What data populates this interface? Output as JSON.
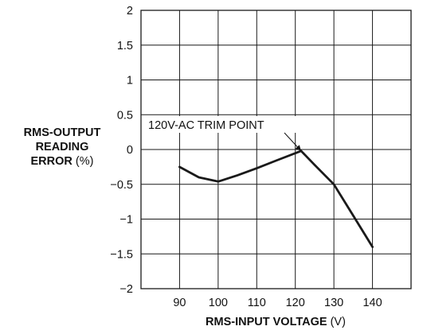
{
  "chart_data": {
    "type": "line",
    "ylabel_lines": [
      "RMS-OUTPUT",
      "READING",
      "ERROR"
    ],
    "ylabel_unit": "(%)",
    "xlabel": "RMS-INPUT VOLTAGE",
    "xlabel_unit": "(V)",
    "xlim": [
      80,
      150
    ],
    "ylim": [
      -2,
      2
    ],
    "x_ticks": [
      "90",
      "100",
      "110",
      "120",
      "130",
      "140"
    ],
    "y_ticks": [
      "2",
      "1.5",
      "1",
      "0.5",
      "0",
      "−0.5",
      "−1",
      "−1.5",
      "−2"
    ],
    "grid": true,
    "series": [
      {
        "color": "#1a1a1a",
        "x": [
          90,
          95,
          100,
          105,
          110,
          115,
          121.5,
          125,
          130,
          135,
          140
        ],
        "y": [
          -0.25,
          -0.4,
          -0.46,
          -0.37,
          -0.27,
          -0.16,
          -0.02,
          -0.22,
          -0.5,
          -0.95,
          -1.4
        ]
      }
    ],
    "annotation": {
      "text": "120V-AC TRIM POINT",
      "x": 121.5,
      "y": -0.02
    }
  }
}
